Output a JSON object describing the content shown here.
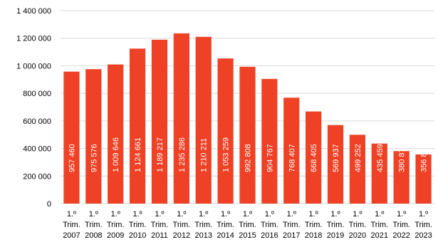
{
  "chart_data": {
    "type": "bar",
    "title": "",
    "xlabel": "",
    "ylabel": "",
    "ylim": [
      0,
      1400000
    ],
    "yticks": [
      {
        "value": 0,
        "label": "0"
      },
      {
        "value": 200000,
        "label": "200 000"
      },
      {
        "value": 400000,
        "label": "400 000"
      },
      {
        "value": 600000,
        "label": "600 000"
      },
      {
        "value": 800000,
        "label": "800 000"
      },
      {
        "value": 1000000,
        "label": "1 000 000"
      },
      {
        "value": 1200000,
        "label": "1 200 000"
      },
      {
        "value": 1400000,
        "label": "1 400 000"
      }
    ],
    "grid": true,
    "legend": "none",
    "bar_color": "#ee4125",
    "grid_color": "#d9d9d9",
    "categories": [
      [
        "1.º",
        "Trim.",
        "2007"
      ],
      [
        "1.º",
        "Trim.",
        "2008"
      ],
      [
        "1.º",
        "Trim.",
        "2009"
      ],
      [
        "1.º",
        "Trim.",
        "2010"
      ],
      [
        "1.º",
        "Trim.",
        "2011"
      ],
      [
        "1.º",
        "Trim.",
        "2012"
      ],
      [
        "1.º",
        "Trim.",
        "2013"
      ],
      [
        "1.º",
        "Trim.",
        "2014"
      ],
      [
        "1.º",
        "Trim.",
        "2015"
      ],
      [
        "1.º",
        "Trim.",
        "2016"
      ],
      [
        "1.º",
        "Trim.",
        "2017"
      ],
      [
        "1.º",
        "Trim.",
        "2018"
      ],
      [
        "1.º",
        "Trim.",
        "2019"
      ],
      [
        "1.º",
        "Trim.",
        "2020"
      ],
      [
        "1.º",
        "Trim.",
        "2021"
      ],
      [
        "1.º",
        "Trim.",
        "2022"
      ],
      [
        "1.º",
        "Trim.",
        "2023"
      ]
    ],
    "values": [
      957460,
      975576,
      1009646,
      1124661,
      1189217,
      1235286,
      1210211,
      1053259,
      992808,
      904767,
      768407,
      668405,
      569937,
      499252,
      435459,
      380875,
      356835
    ],
    "value_labels": [
      "957 460",
      "975 576",
      "1 009 646",
      "1 124 661",
      "1 189 217",
      "1 235 286",
      "1 210 211",
      "1 053 259",
      "992 808",
      "904 767",
      "768 407",
      "668 405",
      "569 937",
      "499 252",
      "435 459",
      "380 875",
      "356 835"
    ]
  }
}
